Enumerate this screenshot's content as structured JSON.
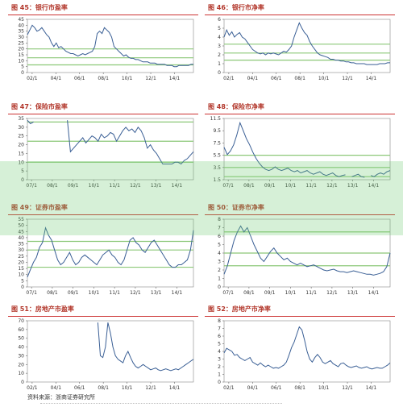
{
  "watermark": "",
  "source": "资料来源：浙商证券研究所",
  "colors": {
    "title": "#b2362a",
    "line": "#3a5f95",
    "ref": "#8cc878",
    "rule": "#c33"
  },
  "chart_data": [
    {
      "type": "line",
      "title": "图 45：银行市盈率",
      "yticks": [
        0,
        5,
        10,
        15,
        20,
        25,
        30,
        35,
        40,
        45
      ],
      "ylim": [
        0,
        45
      ],
      "xticks": [
        "02/1",
        "04/1",
        "06/1",
        "08/1",
        "10/1",
        "12/1",
        "14/1"
      ],
      "ref_lines": [
        20,
        12.5,
        6.5
      ],
      "values": [
        32,
        36,
        40,
        38,
        35,
        36,
        38,
        35,
        32,
        30,
        25,
        22,
        25,
        21,
        22,
        20,
        18,
        17,
        16,
        16,
        15,
        14,
        15,
        16,
        15,
        16,
        17,
        18,
        22,
        33,
        35,
        33,
        38,
        36,
        34,
        30,
        22,
        20,
        18,
        16,
        14,
        15,
        13,
        12,
        12,
        11,
        11,
        10,
        9,
        9,
        9,
        8,
        8,
        8,
        7,
        7,
        7,
        7,
        6,
        6,
        6,
        5,
        5,
        6,
        6,
        6,
        6,
        6,
        7,
        7
      ]
    },
    {
      "type": "line",
      "title": "图 46：银行市净率",
      "yticks": [
        0,
        1,
        2,
        3,
        4,
        5,
        6
      ],
      "ylim": [
        0,
        6
      ],
      "xticks": [
        "02/1",
        "04/1",
        "06/1",
        "08/1",
        "10/1",
        "12/1",
        "14/1"
      ],
      "ref_lines": [
        3.2,
        2.2,
        1.4
      ],
      "values": [
        4.0,
        4.8,
        4.2,
        4.6,
        4.0,
        4.3,
        4.5,
        4.0,
        3.8,
        3.4,
        3.0,
        2.6,
        2.4,
        2.2,
        2.1,
        2.2,
        2.0,
        2.2,
        2.1,
        2.2,
        2.1,
        2.0,
        2.2,
        2.4,
        2.3,
        2.6,
        3.0,
        4.0,
        4.8,
        5.6,
        5.0,
        4.5,
        4.2,
        3.5,
        3.0,
        2.6,
        2.2,
        2.0,
        1.9,
        1.8,
        1.7,
        1.5,
        1.5,
        1.4,
        1.4,
        1.3,
        1.3,
        1.2,
        1.2,
        1.1,
        1.1,
        1.0,
        1.0,
        1.0,
        1.0,
        0.9,
        0.9,
        0.9,
        0.9,
        0.9,
        1.0,
        1.0,
        1.0,
        1.1,
        1.1
      ]
    },
    {
      "type": "line",
      "title": "图 47：保险市盈率",
      "yticks": [
        0,
        5,
        10,
        15,
        20,
        25,
        30,
        35
      ],
      "ylim": [
        0,
        35
      ],
      "xticks": [
        "07/1",
        "08/1",
        "09/1",
        "10/1",
        "11/1",
        "12/1",
        "13/1",
        "14/1"
      ],
      "ref_lines": [
        33,
        22,
        10
      ],
      "values": [
        34,
        32,
        33,
        null,
        null,
        null,
        null,
        null,
        null,
        null,
        null,
        null,
        null,
        34,
        16,
        18,
        20,
        22,
        24,
        21,
        23,
        25,
        24,
        22,
        26,
        24,
        25,
        27,
        26,
        22,
        25,
        28,
        30,
        28,
        29,
        27,
        30,
        28,
        24,
        18,
        20,
        17,
        15,
        12,
        9,
        9,
        9,
        9,
        10,
        10,
        9,
        11,
        12,
        14,
        16
      ]
    },
    {
      "type": "line",
      "title": "图 48：保险市净率",
      "yticks": [
        1.5,
        3.5,
        5.5,
        7.5,
        9.5,
        11.5
      ],
      "ylim": [
        1.5,
        11.5
      ],
      "xticks": [
        "07/1",
        "08/1",
        "09/1",
        "10/1",
        "11/1",
        "12/1",
        "13/1",
        "14/1"
      ],
      "ref_lines": [
        5.5,
        3.5,
        2.0
      ],
      "values": [
        6.8,
        5.6,
        6.2,
        7.2,
        8.8,
        10.8,
        9.5,
        8.2,
        7.2,
        6.0,
        5.0,
        4.2,
        3.6,
        3.2,
        3.0,
        3.2,
        3.6,
        3.2,
        3.0,
        3.2,
        3.4,
        3.0,
        2.8,
        3.0,
        2.6,
        2.8,
        3.0,
        2.6,
        2.4,
        2.6,
        2.8,
        2.4,
        2.2,
        2.4,
        2.6,
        2.2,
        2.0,
        2.2,
        2.3,
        null,
        2.0,
        2.2,
        2.4,
        2.0,
        1.9,
        null,
        2.2,
        2.0,
        2.4,
        2.6,
        2.4,
        2.8,
        3.0
      ]
    },
    {
      "type": "line",
      "title": "图 49：证券市盈率",
      "yticks": [
        0,
        5,
        10,
        15,
        20,
        25,
        30,
        35,
        40,
        45,
        50,
        55
      ],
      "ylim": [
        0,
        55
      ],
      "xticks": [
        "07/1",
        "08/1",
        "09/1",
        "10/1",
        "11/1",
        "12/1",
        "13/1",
        "14/1"
      ],
      "ref_lines": [
        37,
        30,
        16
      ],
      "values": [
        8,
        14,
        20,
        24,
        32,
        36,
        48,
        42,
        38,
        30,
        22,
        18,
        20,
        24,
        28,
        22,
        18,
        20,
        24,
        26,
        24,
        22,
        20,
        18,
        22,
        26,
        28,
        30,
        26,
        24,
        20,
        18,
        22,
        30,
        38,
        40,
        36,
        34,
        30,
        28,
        32,
        36,
        38,
        34,
        30,
        26,
        22,
        18,
        16,
        16,
        18,
        18,
        20,
        22,
        30,
        46
      ]
    },
    {
      "type": "line",
      "title": "图 50：证券市净率",
      "yticks": [
        0,
        1,
        2,
        3,
        4,
        5,
        6,
        7,
        8
      ],
      "ylim": [
        0,
        8
      ],
      "xticks": [
        "07/1",
        "08/1",
        "09/1",
        "10/1",
        "11/1",
        "12/1",
        "13/1",
        "14/1"
      ],
      "ref_lines": [
        6.5,
        4.0,
        2.5
      ],
      "values": [
        1.5,
        2.5,
        4.0,
        5.5,
        6.5,
        7.2,
        6.5,
        7.0,
        6.0,
        5.0,
        4.2,
        3.4,
        3.0,
        3.6,
        4.2,
        4.6,
        4.0,
        3.6,
        3.2,
        3.4,
        3.0,
        2.8,
        2.6,
        2.8,
        2.6,
        2.4,
        2.5,
        2.6,
        2.4,
        2.2,
        2.0,
        1.9,
        2.0,
        2.1,
        1.9,
        1.8,
        1.8,
        1.7,
        1.8,
        1.9,
        1.8,
        1.7,
        1.6,
        1.5,
        1.5,
        1.4,
        1.5,
        1.6,
        1.8,
        2.4,
        4.0
      ]
    },
    {
      "type": "line",
      "title": "图 51：房地产市盈率",
      "yticks": [
        0,
        10,
        20,
        30,
        40,
        50,
        60,
        70
      ],
      "ylim": [
        0,
        70
      ],
      "xticks": [
        "02/1",
        "04/1",
        "06/1",
        "08/1",
        "10/1",
        "12/1",
        "14/1"
      ],
      "ref_lines": [],
      "values": [
        null,
        null,
        null,
        null,
        null,
        null,
        null,
        null,
        null,
        null,
        null,
        null,
        null,
        null,
        null,
        null,
        null,
        null,
        null,
        null,
        null,
        null,
        null,
        null,
        null,
        null,
        null,
        null,
        68,
        30,
        28,
        40,
        68,
        56,
        40,
        30,
        26,
        24,
        22,
        30,
        35,
        28,
        22,
        18,
        16,
        18,
        20,
        18,
        16,
        14,
        15,
        16,
        14,
        13,
        14,
        15,
        14,
        13,
        14,
        15,
        14,
        16,
        18,
        20,
        22,
        24,
        26
      ]
    },
    {
      "type": "line",
      "title": "图 52：房地产市净率",
      "yticks": [
        0,
        1,
        2,
        3,
        4,
        5,
        6,
        7,
        8
      ],
      "ylim": [
        0,
        8
      ],
      "xticks": [
        "02/1",
        "04/1",
        "06/1",
        "08/1",
        "10/1",
        "12/1",
        "14/1"
      ],
      "ref_lines": [],
      "values": [
        3.8,
        4.4,
        4.2,
        4.0,
        3.5,
        3.6,
        3.2,
        3.0,
        2.8,
        3.0,
        3.2,
        2.6,
        2.4,
        2.2,
        2.5,
        2.2,
        2.0,
        2.2,
        2.0,
        1.8,
        1.9,
        1.8,
        2.0,
        2.2,
        2.6,
        3.5,
        4.5,
        5.2,
        6.2,
        7.2,
        6.8,
        5.5,
        4.0,
        3.0,
        2.6,
        3.2,
        3.6,
        3.2,
        2.6,
        2.4,
        2.6,
        2.8,
        2.4,
        2.2,
        2.0,
        2.4,
        2.5,
        2.2,
        2.0,
        1.9,
        2.0,
        2.1,
        1.9,
        1.8,
        1.9,
        2.0,
        1.8,
        1.7,
        1.8,
        1.9,
        1.8,
        1.8,
        2.0,
        2.2,
        2.5
      ]
    }
  ]
}
